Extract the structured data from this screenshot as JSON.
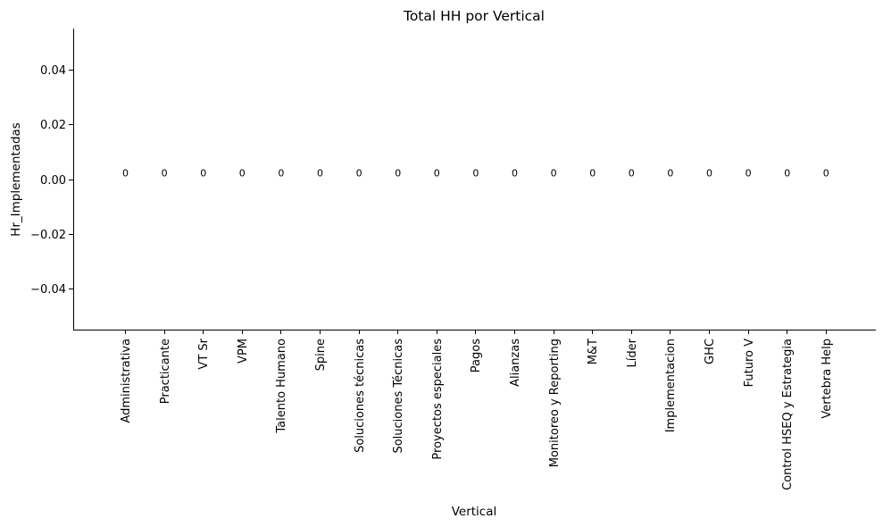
{
  "chart_data": {
    "type": "bar",
    "title": "Total HH por Vertical",
    "xlabel": "Vertical",
    "ylabel": "Hr_Implementadas",
    "categories": [
      "Administrativa",
      "Practicante",
      "VT Sr",
      "VPM",
      "Talento Humano",
      "Spine",
      "Soluciones técnicas",
      "Soluciones Técnicas",
      "Proyectos especiales",
      "Pagos",
      "Alianzas",
      "Monitoreo y Reporting",
      "M&T",
      "Líder",
      "Implementacion",
      "GHC",
      "Futuro V",
      "Control HSEQ y Estrategia",
      "Vertebra Help"
    ],
    "values": [
      0,
      0,
      0,
      0,
      0,
      0,
      0,
      0,
      0,
      0,
      0,
      0,
      0,
      0,
      0,
      0,
      0,
      0,
      0
    ],
    "data_labels": [
      "0",
      "0",
      "0",
      "0",
      "0",
      "0",
      "0",
      "0",
      "0",
      "0",
      "0",
      "0",
      "0",
      "0",
      "0",
      "0",
      "0",
      "0",
      "0"
    ],
    "ylim": [
      -0.055,
      0.055
    ],
    "yticks": [
      -0.04,
      -0.02,
      0.0,
      0.02,
      0.04
    ],
    "ytick_labels": [
      "−0.04",
      "−0.02",
      "0.00",
      "0.02",
      "0.04"
    ],
    "grid": false,
    "legend": "none",
    "color": "#1f77b4"
  }
}
